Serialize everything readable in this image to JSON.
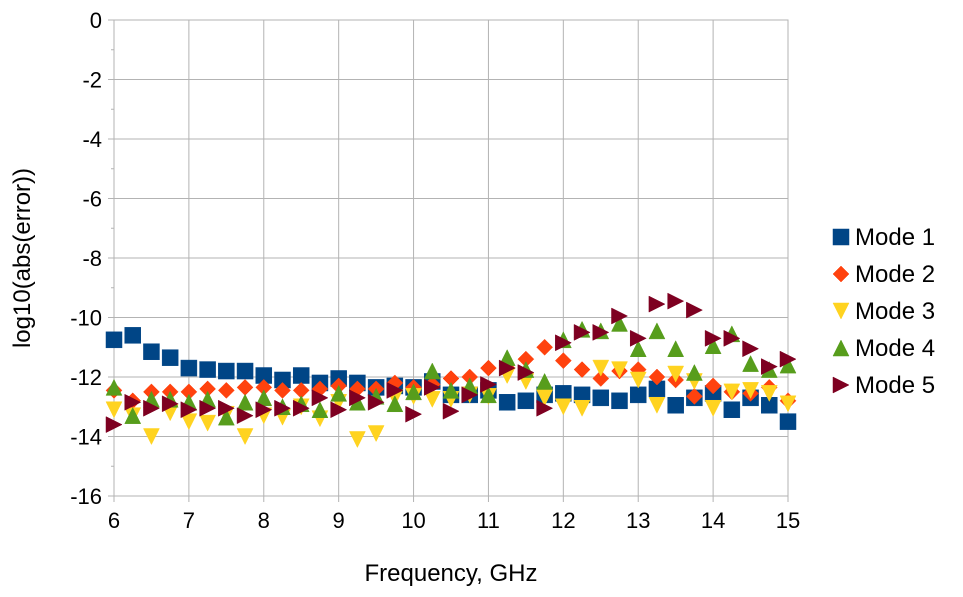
{
  "chart_data": {
    "type": "scatter",
    "title": "",
    "xlabel": "Frequency, GHz",
    "ylabel": "log10(abs(error))",
    "xlim": [
      6,
      15
    ],
    "ylim": [
      -16,
      0
    ],
    "xticks": [
      6,
      7,
      8,
      9,
      10,
      11,
      12,
      13,
      14,
      15
    ],
    "yticks": [
      0,
      -2,
      -4,
      -6,
      -8,
      -10,
      -12,
      -14,
      -16
    ],
    "grid": true,
    "legend_position": "right",
    "x": [
      6.0,
      6.25,
      6.5,
      6.75,
      7.0,
      7.25,
      7.5,
      7.75,
      8.0,
      8.25,
      8.5,
      8.75,
      9.0,
      9.25,
      9.5,
      9.75,
      10.0,
      10.25,
      10.5,
      10.75,
      11.0,
      11.25,
      11.5,
      11.75,
      12.0,
      12.25,
      12.5,
      12.75,
      13.0,
      13.25,
      13.5,
      13.75,
      14.0,
      14.25,
      14.5,
      14.75,
      15.0
    ],
    "series": [
      {
        "name": "Mode 1",
        "marker": "square",
        "color": "#004586",
        "values": [
          -10.75,
          -10.6,
          -11.15,
          -11.35,
          -11.7,
          -11.75,
          -11.8,
          -11.8,
          -11.95,
          -12.1,
          -11.95,
          -12.2,
          -12.05,
          -12.2,
          -12.35,
          -12.3,
          -12.35,
          -12.15,
          -12.6,
          -12.6,
          -12.45,
          -12.85,
          -12.8,
          -12.6,
          -12.55,
          -12.6,
          -12.7,
          -12.8,
          -12.6,
          -12.4,
          -12.95,
          -12.7,
          -12.55,
          -13.1,
          -12.7,
          -12.95,
          -13.5
        ]
      },
      {
        "name": "Mode 2",
        "marker": "diamond",
        "color": "#ff420e",
        "values": [
          -12.45,
          -12.8,
          -12.5,
          -12.5,
          -12.5,
          -12.4,
          -12.45,
          -12.35,
          -12.35,
          -12.45,
          -12.45,
          -12.4,
          -12.3,
          -12.4,
          -12.4,
          -12.2,
          -12.35,
          -12.25,
          -12.05,
          -12.0,
          -11.7,
          -11.7,
          -11.4,
          -11.0,
          -11.45,
          -11.75,
          -12.05,
          -11.8,
          -11.75,
          -12.0,
          -12.1,
          -12.65,
          -12.3,
          -12.5,
          -12.55,
          -12.35,
          -12.8
        ]
      },
      {
        "name": "Mode 3",
        "marker": "triangle-down",
        "color": "#ffd320",
        "values": [
          -13.1,
          -13.3,
          -14.0,
          -13.2,
          -13.5,
          -13.55,
          -13.25,
          -14.0,
          -13.3,
          -13.35,
          -13.0,
          -13.4,
          -12.85,
          -14.1,
          -13.9,
          -12.7,
          -12.65,
          -12.75,
          -12.75,
          -12.6,
          -12.65,
          -11.95,
          -12.15,
          -12.7,
          -13.0,
          -13.05,
          -11.7,
          -11.75,
          -12.1,
          -12.95,
          -11.9,
          -12.15,
          -13.05,
          -12.5,
          -12.45,
          -12.55,
          -12.9
        ]
      },
      {
        "name": "Mode 4",
        "marker": "triangle-up",
        "color": "#579d1c",
        "values": [
          -12.35,
          -13.3,
          -12.75,
          -12.75,
          -12.85,
          -12.75,
          -13.35,
          -12.85,
          -12.7,
          -13.0,
          -12.9,
          -13.1,
          -12.55,
          -12.85,
          -12.65,
          -12.9,
          -12.5,
          -11.8,
          -12.45,
          -12.3,
          -12.6,
          -11.35,
          -11.75,
          -12.15,
          -10.75,
          -10.4,
          -10.45,
          -10.2,
          -11.05,
          -10.45,
          -11.05,
          -11.85,
          -10.95,
          -10.55,
          -11.55,
          -11.75,
          -11.6
        ]
      },
      {
        "name": "Mode 5",
        "marker": "triangle-right",
        "color": "#7e0021",
        "values": [
          -13.6,
          -12.85,
          -13.05,
          -12.9,
          -13.1,
          -13.05,
          -13.05,
          -13.3,
          -13.1,
          -13.05,
          -13.05,
          -12.7,
          -13.1,
          -12.7,
          -12.85,
          -12.45,
          -13.25,
          -12.35,
          -13.15,
          -12.6,
          -12.25,
          -11.7,
          -11.85,
          -13.05,
          -10.85,
          -10.5,
          -10.5,
          -9.95,
          -10.7,
          -9.55,
          -9.45,
          -9.75,
          -10.7,
          -10.7,
          -11.05,
          -11.65,
          -11.4
        ]
      }
    ]
  }
}
